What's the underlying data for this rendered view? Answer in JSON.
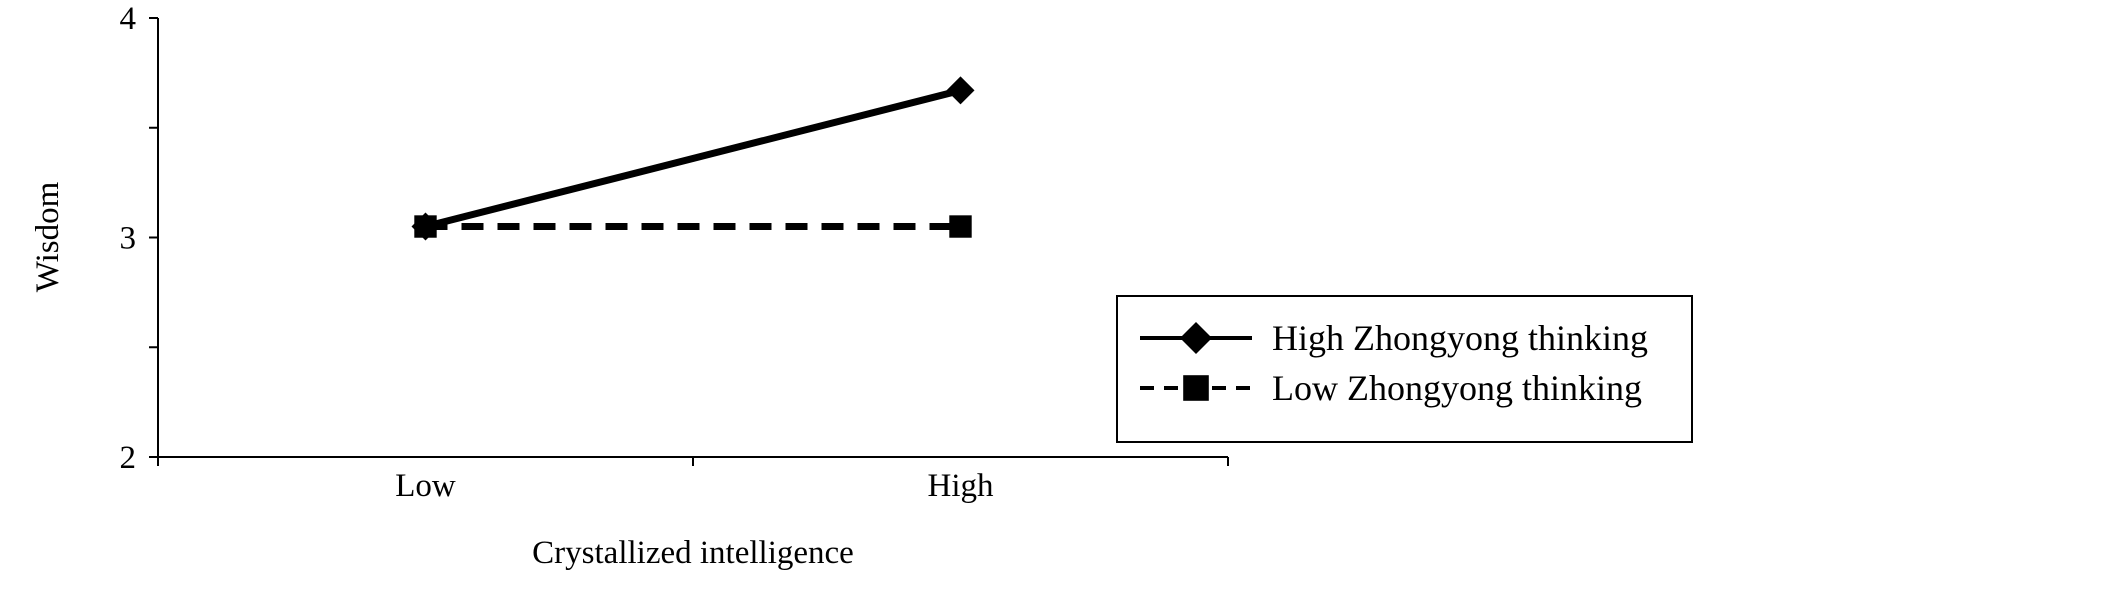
{
  "chart_data": {
    "type": "line",
    "title": "",
    "xlabel": "Crystallized intelligence",
    "ylabel": "Wisdom",
    "categories": [
      "Low",
      "High"
    ],
    "ylim": [
      2,
      4
    ],
    "yticks": [
      2,
      3,
      4
    ],
    "ytick_labels": [
      "2",
      "3",
      "4"
    ],
    "grid": false,
    "legend_position": "right",
    "series": [
      {
        "name": "High Zhongyong thinking",
        "values": [
          3.05,
          3.67
        ],
        "marker": "diamond",
        "line_style": "solid",
        "color": "#000000"
      },
      {
        "name": "Low Zhongyong thinking",
        "values": [
          3.05,
          3.05
        ],
        "marker": "square",
        "line_style": "dashed",
        "color": "#000000"
      }
    ]
  }
}
